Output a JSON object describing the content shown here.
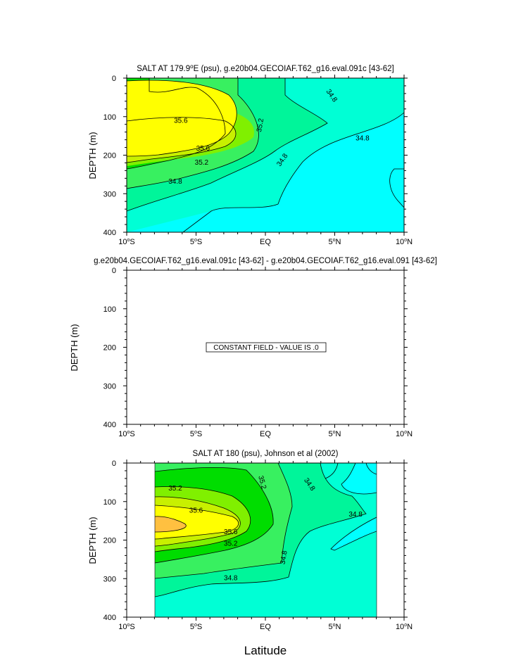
{
  "figure": {
    "xlabel": "Latitude"
  },
  "colors": {
    "cyan": "#00ffff",
    "aqua": "#00ffd5",
    "seafoam": "#00f59a",
    "green1": "#38f060",
    "green2": "#00dd00",
    "lime": "#80f000",
    "chartreuse": "#c8f000",
    "yellow": "#ffff00",
    "orange": "#ffc040",
    "contour_line": "#000000"
  },
  "chart_data": [
    {
      "type": "contour",
      "title": "SALT AT 179.9",
      "title_sup": "o",
      "title_rest": "E (psu), g.e20b04.GECOIAF.T62_g16.eval.091c [43-62]",
      "ylabel": "DEPTH (m)",
      "xlim": [
        -10,
        10
      ],
      "ylim": [
        400,
        0
      ],
      "xticks": [
        {
          "value": -10,
          "num": "10",
          "dir": "S"
        },
        {
          "value": -5,
          "num": "5",
          "dir": "S"
        },
        {
          "value": 0,
          "num": "EQ",
          "dir": ""
        },
        {
          "value": 5,
          "num": "5",
          "dir": "N"
        },
        {
          "value": 10,
          "num": "10",
          "dir": "N"
        }
      ],
      "yticks": [
        "0",
        "100",
        "200",
        "300",
        "400"
      ],
      "contour_labels": [
        {
          "text": "35.6",
          "lat": -6.1,
          "depth": 110
        },
        {
          "text": "35.6",
          "lat": -4.5,
          "depth": 182
        },
        {
          "text": "35.2",
          "lat": -4.6,
          "depth": 218
        },
        {
          "text": "34.8",
          "lat": -6.5,
          "depth": 268
        },
        {
          "text": "35.2",
          "lat": -0.4,
          "depth": 122,
          "rotate": -80
        },
        {
          "text": "34.8",
          "lat": 1.2,
          "depth": 212,
          "rotate": -55
        },
        {
          "text": "34.8",
          "lat": 4.8,
          "depth": 45,
          "rotate": 55
        },
        {
          "text": "34.8",
          "lat": 7.0,
          "depth": 155
        }
      ]
    },
    {
      "type": "contour",
      "title": "g.e20b04.GECOIAF.T62_g16.eval.091c [43-62] - g.e20b04.GECOIAF.T62_g16.eval.091 [43-62]",
      "ylabel": "DEPTH (m)",
      "xlim": [
        -10,
        10
      ],
      "ylim": [
        400,
        0
      ],
      "xticks": [
        {
          "value": -10,
          "num": "10",
          "dir": "S"
        },
        {
          "value": -5,
          "num": "5",
          "dir": "S"
        },
        {
          "value": 0,
          "num": "EQ",
          "dir": ""
        },
        {
          "value": 5,
          "num": "5",
          "dir": "N"
        },
        {
          "value": 10,
          "num": "10",
          "dir": "N"
        }
      ],
      "yticks": [
        "0",
        "100",
        "200",
        "300",
        "400"
      ],
      "constant_field": {
        "value": 0,
        "message": "CONSTANT FIELD - VALUE IS .0"
      }
    },
    {
      "type": "contour",
      "title": "SALT AT 180 (psu), Johnson et al (2002)",
      "ylabel": "DEPTH (m)",
      "xlim": [
        -10,
        10
      ],
      "ylim": [
        400,
        0
      ],
      "data_extent": [
        -8,
        8
      ],
      "xticks": [
        {
          "value": -10,
          "num": "10",
          "dir": "S"
        },
        {
          "value": -5,
          "num": "5",
          "dir": "S"
        },
        {
          "value": 0,
          "num": "EQ",
          "dir": ""
        },
        {
          "value": 5,
          "num": "5",
          "dir": "N"
        },
        {
          "value": 10,
          "num": "10",
          "dir": "N"
        }
      ],
      "yticks": [
        "0",
        "100",
        "200",
        "300",
        "400"
      ],
      "contour_labels": [
        {
          "text": "35.2",
          "lat": -6.5,
          "depth": 65
        },
        {
          "text": "35.6",
          "lat": -5.0,
          "depth": 122
        },
        {
          "text": "35.6",
          "lat": -2.5,
          "depth": 178
        },
        {
          "text": "35.2",
          "lat": -2.5,
          "depth": 208
        },
        {
          "text": "34.8",
          "lat": -2.5,
          "depth": 298
        },
        {
          "text": "35.2",
          "lat": -0.2,
          "depth": 50,
          "rotate": 75
        },
        {
          "text": "34.8",
          "lat": 1.3,
          "depth": 245,
          "rotate": -80
        },
        {
          "text": "34.8",
          "lat": 3.2,
          "depth": 55,
          "rotate": 55
        },
        {
          "text": "34.8",
          "lat": 6.5,
          "depth": 132
        }
      ]
    }
  ]
}
